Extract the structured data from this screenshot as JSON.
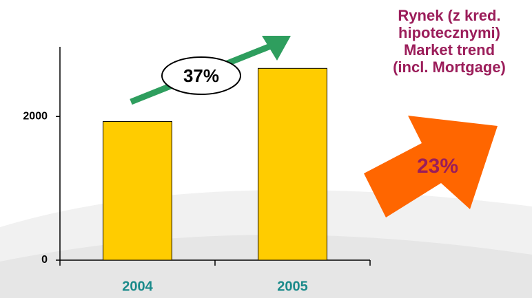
{
  "chart_data": {
    "type": "bar",
    "categories": [
      "2004",
      "2005"
    ],
    "values": [
      1930,
      2670
    ],
    "color": "#ffcc00",
    "ylim": [
      0,
      2970
    ],
    "yticks": [
      0,
      2000
    ],
    "annotations": [
      "37%",
      "Rynek (z kred.",
      "hipotecznymi)",
      "Market trend",
      "(incl. Mortgage)",
      "23%"
    ]
  }
}
